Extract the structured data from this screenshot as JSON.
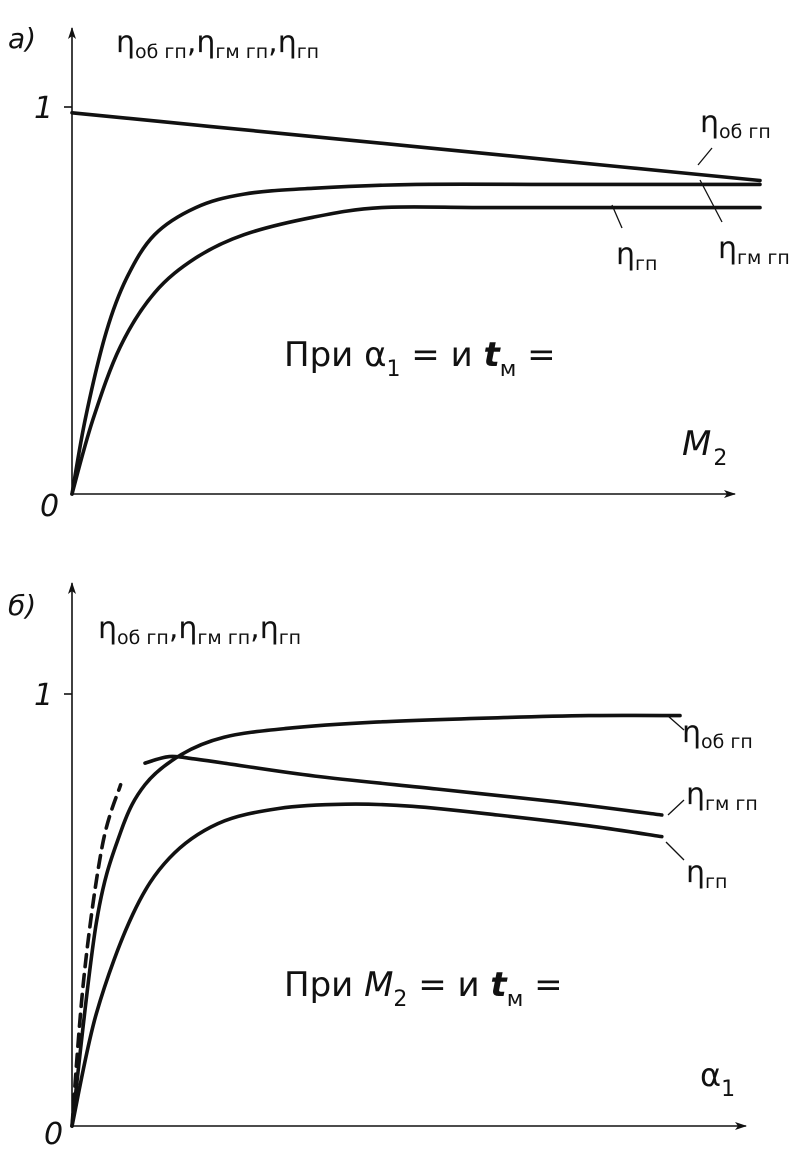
{
  "chart_data": [
    {
      "type": "line",
      "panel_label": "а)",
      "ylabel": {
        "main": "η",
        "s1": "об гп",
        "c1": ",",
        "m2": "η",
        "s2": "гм гп",
        "c2": ",",
        "m3": "η",
        "s3": "гп"
      },
      "xlabel": {
        "main": "M",
        "sub": "2"
      },
      "origin_label": "0",
      "y_tick_label": "1",
      "condition": {
        "prefix": "При ",
        "sym": "α",
        "sub": "1",
        "mid": " =  и ",
        "t": "t",
        "tsub": "м",
        "end": " ="
      },
      "xlim": [
        0,
        1
      ],
      "ylim": [
        0,
        1.05
      ],
      "series": [
        {
          "name": "η об гп",
          "x": [
            0,
            0.2,
            0.4,
            0.6,
            0.8,
            1.0
          ],
          "y": [
            0.985,
            0.95,
            0.915,
            0.88,
            0.845,
            0.81
          ]
        },
        {
          "name": "η гм гп",
          "x": [
            0,
            0.02,
            0.05,
            0.08,
            0.12,
            0.18,
            0.25,
            0.35,
            0.5,
            0.7,
            0.85,
            1.0
          ],
          "y": [
            0,
            0.2,
            0.42,
            0.56,
            0.67,
            0.74,
            0.775,
            0.79,
            0.8,
            0.8,
            0.8,
            0.8
          ]
        },
        {
          "name": "η гп",
          "x": [
            0,
            0.03,
            0.07,
            0.12,
            0.18,
            0.25,
            0.35,
            0.45,
            0.6,
            0.8,
            1.0
          ],
          "y": [
            0,
            0.19,
            0.38,
            0.52,
            0.61,
            0.67,
            0.715,
            0.74,
            0.74,
            0.74,
            0.74
          ]
        }
      ],
      "annotations": [
        {
          "main": "η",
          "sub": "об гп",
          "series": "η об гп"
        },
        {
          "main": "η",
          "sub": "гм гп",
          "series": "η гм гп"
        },
        {
          "main": "η",
          "sub": "гп",
          "series": "η гп"
        }
      ],
      "grid": false
    },
    {
      "type": "line",
      "panel_label": "б)",
      "ylabel": {
        "main": "η",
        "s1": "об гп",
        "c1": ",",
        "m2": "η",
        "s2": "гм гп",
        "c2": ",",
        "m3": "η",
        "s3": "гп"
      },
      "xlabel": {
        "main": "α",
        "sub": "1"
      },
      "origin_label": "0",
      "y_tick_label": "1",
      "condition": {
        "prefix": "При ",
        "sym": "M",
        "sub": "2",
        "mid": " =   и ",
        "t": "t",
        "tsub": "м",
        "end": " ="
      },
      "xlim": [
        0,
        1
      ],
      "ylim": [
        0,
        1.05
      ],
      "series": [
        {
          "name": "η об гп",
          "x": [
            0,
            0.04,
            0.08,
            0.12,
            0.18,
            0.25,
            0.35,
            0.5,
            0.7,
            0.85,
            1.0
          ],
          "y": [
            0,
            0.47,
            0.68,
            0.79,
            0.86,
            0.9,
            0.92,
            0.935,
            0.945,
            0.95,
            0.95
          ]
        },
        {
          "name": "η гм гп",
          "x": [
            0,
            0.02,
            0.05,
            0.08,
            0.12,
            0.16,
            0.2,
            0.25,
            0.4,
            0.6,
            0.8,
            0.97
          ],
          "y": [
            0,
            0.35,
            0.65,
            0.79,
            0.84,
            0.855,
            0.85,
            0.84,
            0.81,
            0.78,
            0.75,
            0.72
          ]
        },
        {
          "name": "η гп",
          "x": [
            0,
            0.04,
            0.1,
            0.16,
            0.24,
            0.34,
            0.45,
            0.56,
            0.7,
            0.85,
            0.97
          ],
          "y": [
            0,
            0.26,
            0.49,
            0.62,
            0.7,
            0.735,
            0.745,
            0.74,
            0.72,
            0.695,
            0.67
          ]
        }
      ],
      "dashed_segment": {
        "series": "η гм гп",
        "x": [
          0.0,
          0.1
        ],
        "style": "dashed"
      },
      "annotations": [
        {
          "main": "η",
          "sub": "об гп",
          "series": "η об гп"
        },
        {
          "main": "η",
          "sub": "гм гп",
          "series": "η гм гп"
        },
        {
          "main": "η",
          "sub": "гп",
          "series": "η гп"
        }
      ],
      "grid": false
    }
  ]
}
